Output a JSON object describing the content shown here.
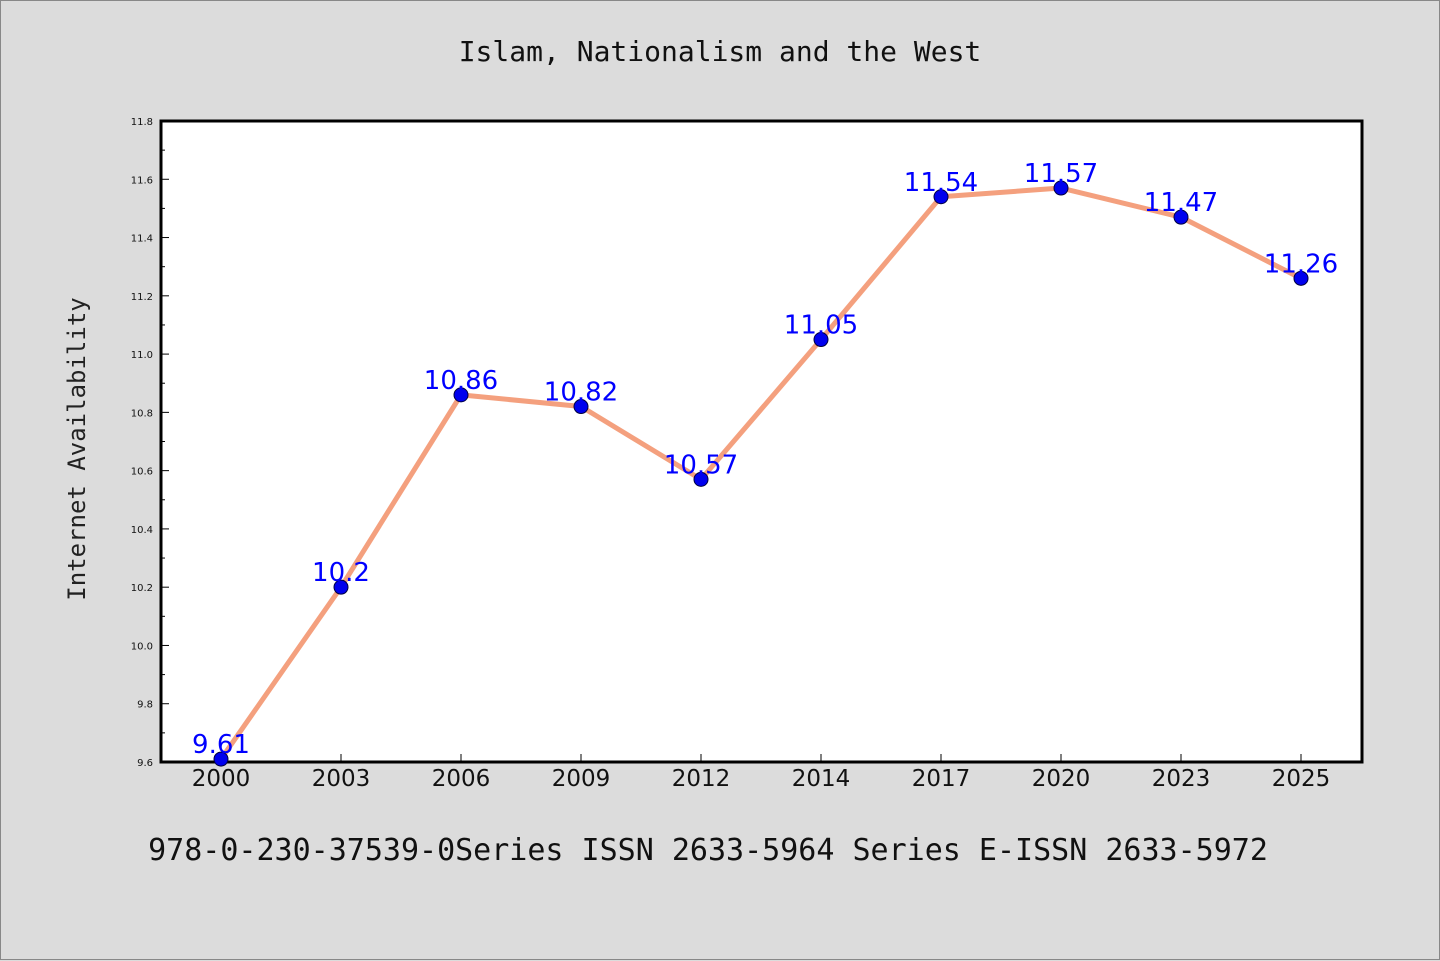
{
  "chart_data": {
    "type": "line",
    "title": "Islam, Nationalism and the West",
    "xlabel": "",
    "ylabel": "Internet Availability",
    "categories": [
      "2000",
      "2003",
      "2006",
      "2009",
      "2012",
      "2014",
      "2017",
      "2020",
      "2023",
      "2025"
    ],
    "values": [
      9.61,
      10.2,
      10.86,
      10.82,
      10.57,
      11.05,
      11.54,
      11.57,
      11.47,
      11.26
    ],
    "data_labels": [
      "9.61",
      "10.2",
      "10.86",
      "10.82",
      "10.57",
      "11.05",
      "11.54",
      "11.57",
      "11.47",
      "11.26"
    ],
    "ylim": [
      9.6,
      11.8
    ],
    "y_ticks": [
      "9.6",
      "9.8",
      "10.0",
      "10.2",
      "10.4",
      "10.6",
      "10.8",
      "11.0",
      "11.2",
      "11.4",
      "11.6",
      "11.8"
    ],
    "grid": false,
    "legend": "none",
    "line_color": "#f4a07e",
    "marker_color": "#0000ee",
    "label_color": "#0000ff",
    "plot_background": "#ffffff",
    "figure_background": "#dcdcdc"
  },
  "footer": {
    "text": "978-0-230-37539-0Series ISSN 2633-5964 Series E-ISSN 2633-5972"
  }
}
